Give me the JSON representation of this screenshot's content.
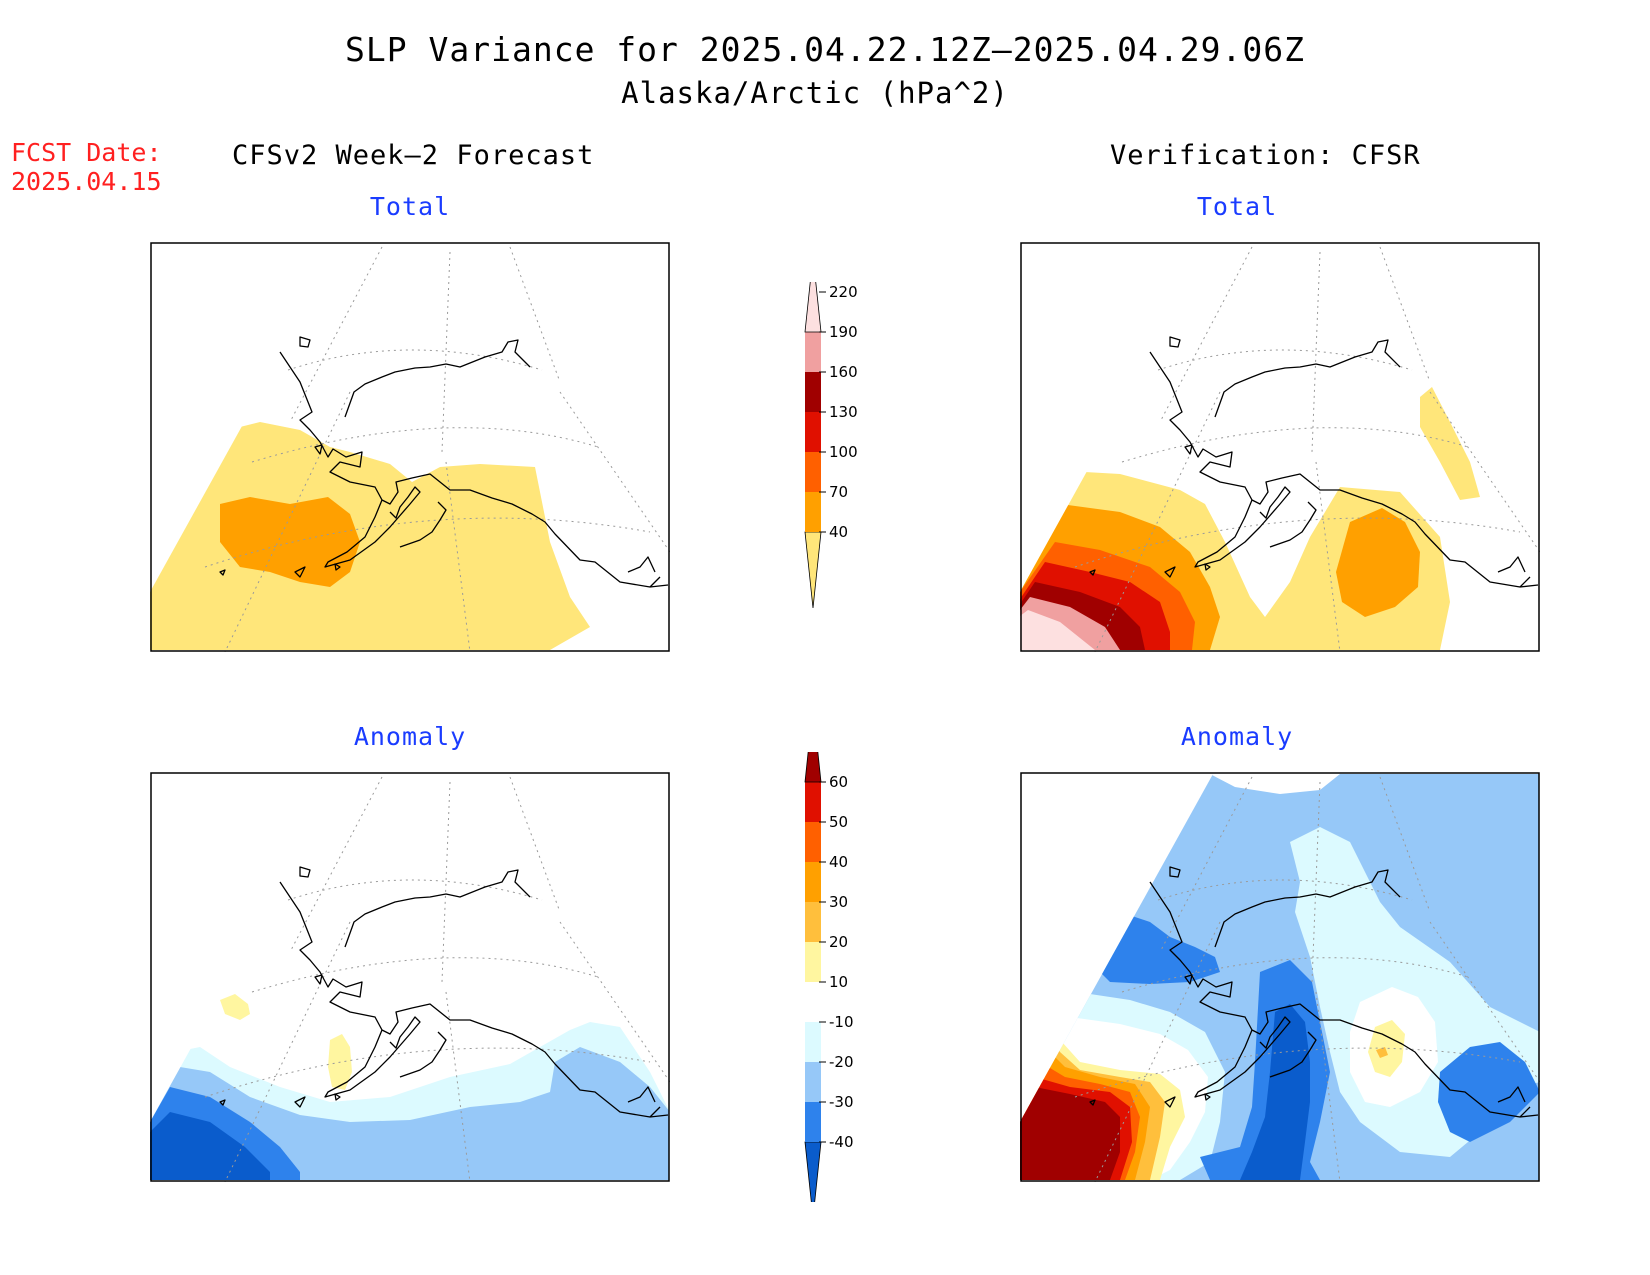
{
  "title": "SLP Variance for 2025.04.22.12Z–2025.04.29.06Z",
  "subtitle": "Alaska/Arctic (hPa^2)",
  "forecast_date": {
    "label": "FCST Date:",
    "value": "2025.04.15"
  },
  "columns": {
    "left": "CFSv2 Week–2 Forecast",
    "right": "Verification: CFSR"
  },
  "panels": {
    "forecast_total": {
      "title": "Total"
    },
    "forecast_anomaly": {
      "title": "Anomaly"
    },
    "verif_total": {
      "title": "Total"
    },
    "verif_anomaly": {
      "title": "Anomaly"
    }
  },
  "legends": {
    "total": {
      "ticks": [
        "40",
        "70",
        "100",
        "130",
        "160",
        "190",
        "220"
      ],
      "colors": [
        "#ffe67a",
        "#ffa000",
        "#ff6000",
        "#e01000",
        "#a00000",
        "#f0a0a0",
        "#fde0e0"
      ]
    },
    "anomaly": {
      "ticks": [
        "-40",
        "-30",
        "-20",
        "-10",
        "10",
        "20",
        "30",
        "40",
        "50",
        "60"
      ],
      "colors": [
        "#0a5ccc",
        "#2e82ec",
        "#96c8f8",
        "#dcfaff",
        "#ffffff",
        "#fff6a0",
        "#ffbf3c",
        "#ffa000",
        "#ff6000",
        "#e01000",
        "#a00000"
      ]
    }
  }
}
